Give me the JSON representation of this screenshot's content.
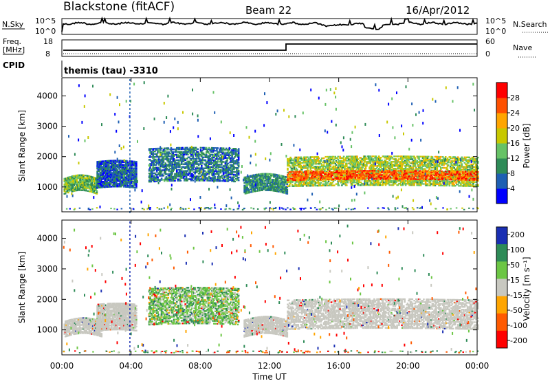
{
  "header": {
    "station": "Blackstone (fitACF)",
    "beam": "Beam 22",
    "date": "16/Apr/2012"
  },
  "strip_panels": {
    "nsky_label": "N.Sky",
    "nsearch_label": "N.Search",
    "noise_ticks": [
      "10^5",
      "10^0"
    ],
    "freq_label_1": "Freq.",
    "freq_label_2": "[MHz]",
    "freq_ticks": [
      "18",
      "8"
    ],
    "nave_label": "Nave",
    "nave_ticks": [
      "60",
      "0"
    ],
    "cpid_label": "CPID",
    "cpid_value": "themis (tau) -3310"
  },
  "colors": {
    "power_scale": [
      "#0000ff",
      "#1e5fb3",
      "#2e8b57",
      "#66c266",
      "#c8c800",
      "#ffa500",
      "#ff5000",
      "#ff0000"
    ],
    "velocity_scale": [
      "#1a2fb3",
      "#2e8b57",
      "#6cc644",
      "#c8c8c0",
      "#ffa500",
      "#ff5a00",
      "#ff0000"
    ],
    "ground_scatter": "#c0c0b8"
  },
  "chart_data": [
    {
      "type": "heatmap",
      "title": "",
      "xlabel": "Time UT",
      "ylabel": "Slant Range [km]",
      "x_ticks": [
        "00:00",
        "04:00",
        "08:00",
        "12:00",
        "16:00",
        "20:00",
        "00:00"
      ],
      "x_hours": [
        0,
        4,
        8,
        12,
        16,
        20,
        24
      ],
      "y_ticks": [
        1000,
        2000,
        3000,
        4000
      ],
      "ylim": [
        180,
        4600
      ],
      "xlim": [
        0,
        24
      ],
      "colorbar": {
        "label": "Power [dB]",
        "ticks": [
          4,
          8,
          12,
          16,
          20,
          24,
          28
        ],
        "range": [
          0,
          32
        ]
      },
      "bands": [
        {
          "t0": 0.1,
          "t1": 2.0,
          "r0": 800,
          "r1": 1300,
          "level": 14
        },
        {
          "t0": 2.0,
          "t1": 4.3,
          "r0": 1000,
          "r1": 1900,
          "level": 6
        },
        {
          "t0": 5.0,
          "t1": 10.2,
          "r0": 1200,
          "r1": 2300,
          "level": 8
        },
        {
          "t0": 10.5,
          "t1": 13.0,
          "r0": 800,
          "r1": 1350,
          "level": 10
        },
        {
          "t0": 13.0,
          "t1": 24.0,
          "r0": 1050,
          "r1": 2000,
          "level": 16
        },
        {
          "t0": 13.0,
          "t1": 24.0,
          "r0": 1250,
          "r1": 1550,
          "level": 26
        }
      ]
    },
    {
      "type": "heatmap",
      "title": "",
      "xlabel": "Time UT",
      "ylabel": "Slant Range [km]",
      "x_ticks": [
        "00:00",
        "04:00",
        "08:00",
        "12:00",
        "16:00",
        "20:00",
        "00:00"
      ],
      "x_hours": [
        0,
        4,
        8,
        12,
        16,
        20,
        24
      ],
      "y_ticks": [
        1000,
        2000,
        3000,
        4000
      ],
      "ylim": [
        180,
        4600
      ],
      "xlim": [
        0,
        24
      ],
      "colorbar": {
        "label": "Velocity [m s⁻¹]",
        "ticks": [
          200,
          100,
          50,
          15,
          -15,
          -50,
          -100,
          -200
        ]
      },
      "bands": [
        {
          "t0": 0.1,
          "t1": 2.3,
          "r0": 800,
          "r1": 1300,
          "level": 0
        },
        {
          "t0": 2.0,
          "t1": 4.3,
          "r0": 1000,
          "r1": 1900,
          "level": 0
        },
        {
          "t0": 5.0,
          "t1": 10.2,
          "r0": 1200,
          "r1": 2400,
          "level": 40
        },
        {
          "t0": 10.5,
          "t1": 13.0,
          "r0": 800,
          "r1": 1350,
          "level": 0
        },
        {
          "t0": 13.0,
          "t1": 24.0,
          "r0": 1050,
          "r1": 2000,
          "level": 0
        }
      ]
    }
  ]
}
